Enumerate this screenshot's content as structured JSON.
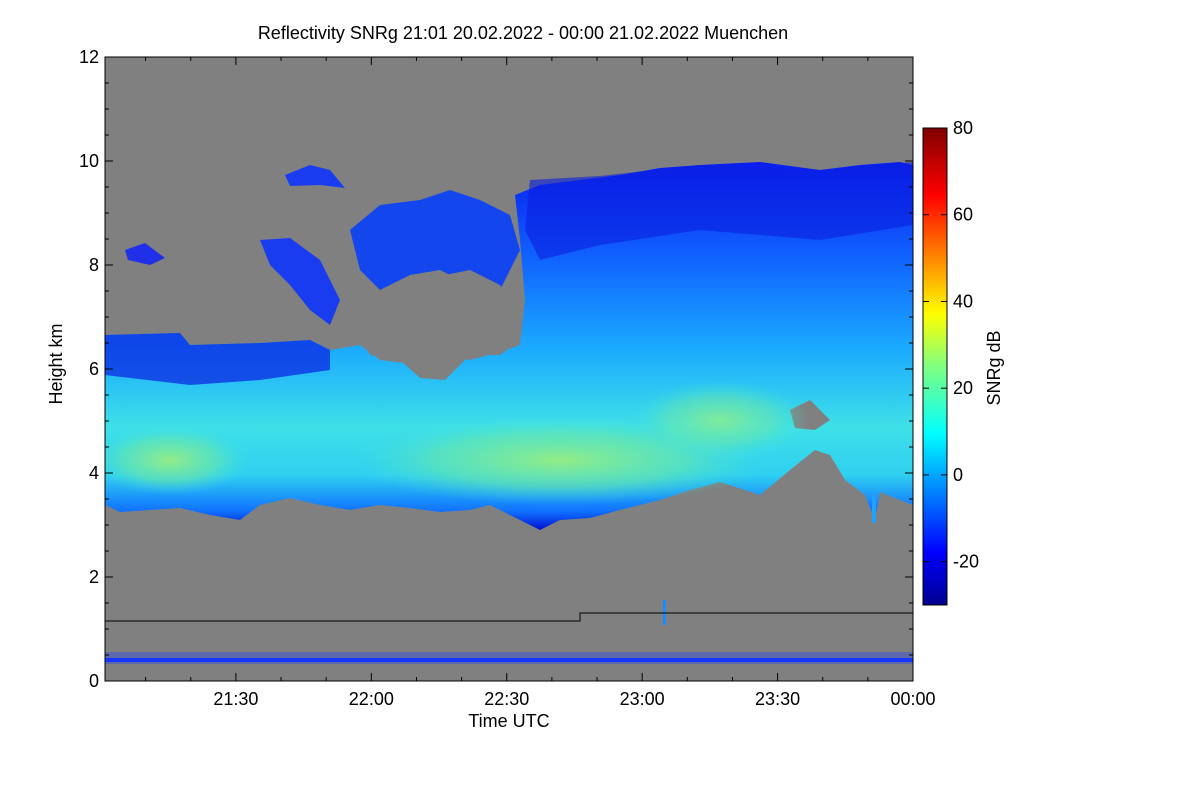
{
  "chart_data": {
    "type": "heatmap",
    "title": "Reflectivity SNRg   21:01 20.02.2022 - 00:00 21.02.2022 Muenchen",
    "xlabel": "Time UTC",
    "ylabel": "Height km",
    "x_range": [
      "21:01",
      "00:00"
    ],
    "xticks": [
      "21:30",
      "22:00",
      "22:30",
      "23:00",
      "23:30",
      "00:00"
    ],
    "ylim": [
      0,
      12
    ],
    "yticks": [
      "0",
      "2",
      "4",
      "6",
      "8",
      "10",
      "12"
    ],
    "colorbar": {
      "label": "SNRg dB",
      "range": [
        -30,
        80
      ],
      "ticks": [
        "-20",
        "0",
        "20",
        "40",
        "60",
        "80"
      ],
      "colormap": "jet"
    },
    "background_color": "#808080",
    "cloud_layers": [
      {
        "description": "main cloud",
        "start": "21:01",
        "end": "00:00",
        "base_km": [
          3.2,
          3.5
        ],
        "top_km": [
          6.5,
          10.0
        ],
        "peak_snr_db": 30
      },
      {
        "description": "lower-level layer",
        "start": "21:01",
        "end": "00:00",
        "base_km": 0.3,
        "top_km": 0.3,
        "snr_db": -15
      }
    ],
    "reference_lines": [
      {
        "start": "21:01",
        "end": "22:46",
        "height_km": 1.1
      },
      {
        "start": "22:46",
        "end": "00:00",
        "height_km": 1.25
      }
    ]
  }
}
